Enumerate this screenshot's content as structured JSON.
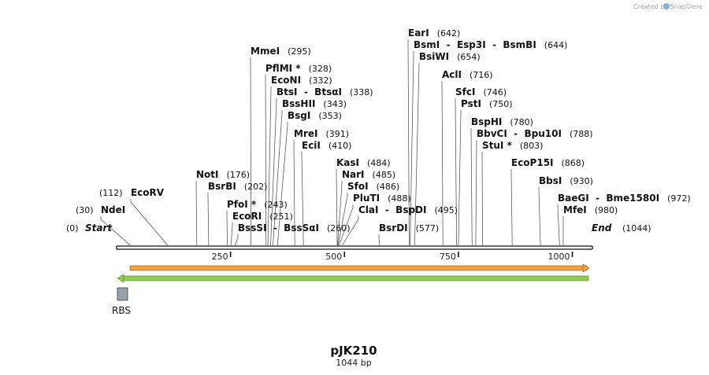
{
  "credit": "Created by SnapGene",
  "plasmid": {
    "name": "pJK210",
    "length_label": "1044 bp",
    "length": 1044
  },
  "ruler": {
    "ticks": [
      {
        "pos": 250,
        "label": "250"
      },
      {
        "pos": 500,
        "label": "500"
      },
      {
        "pos": 750,
        "label": "750"
      },
      {
        "pos": 1000,
        "label": "1000"
      }
    ]
  },
  "ends": {
    "start": {
      "label": "Start",
      "pos": 0,
      "pos_label": "(0)"
    },
    "end": {
      "label": "End",
      "pos": 1044,
      "pos_label": "(1044)"
    }
  },
  "features": [
    {
      "name": "RBS",
      "type": "rbs"
    },
    {
      "name": "",
      "type": "forward-arrow"
    },
    {
      "name": "",
      "type": "reverse-arrow"
    }
  ],
  "enzymes": [
    {
      "name": "NdeI",
      "pos": 30,
      "pos_label": "(30)"
    },
    {
      "name": "EcoRV",
      "pos": 112,
      "pos_label": "(112)"
    },
    {
      "name": "NotI",
      "pos": 176,
      "pos_label": "(176)"
    },
    {
      "name": "BsrBI",
      "pos": 202,
      "pos_label": "(202)"
    },
    {
      "name": "PfoI *",
      "pos": 243,
      "pos_label": "(243)"
    },
    {
      "name": "EcoRI",
      "pos": 251,
      "pos_label": "(251)"
    },
    {
      "name": "BssSI  -  BssSαI",
      "pos": 260,
      "pos_label": "(260)"
    },
    {
      "name": "MmeI",
      "pos": 295,
      "pos_label": "(295)"
    },
    {
      "name": "PflMI *",
      "pos": 328,
      "pos_label": "(328)"
    },
    {
      "name": "EcoNI",
      "pos": 332,
      "pos_label": "(332)"
    },
    {
      "name": "BtsI  -  BtsαI",
      "pos": 338,
      "pos_label": "(338)"
    },
    {
      "name": "BssHII",
      "pos": 343,
      "pos_label": "(343)"
    },
    {
      "name": "BsgI",
      "pos": 353,
      "pos_label": "(353)"
    },
    {
      "name": "MreI",
      "pos": 391,
      "pos_label": "(391)"
    },
    {
      "name": "EciI",
      "pos": 410,
      "pos_label": "(410)"
    },
    {
      "name": "KasI",
      "pos": 484,
      "pos_label": "(484)"
    },
    {
      "name": "NarI",
      "pos": 485,
      "pos_label": "(485)"
    },
    {
      "name": "SfoI",
      "pos": 486,
      "pos_label": "(486)"
    },
    {
      "name": "PluTI",
      "pos": 488,
      "pos_label": "(488)"
    },
    {
      "name": "ClaI  -  BspDI",
      "pos": 495,
      "pos_label": "(495)"
    },
    {
      "name": "BsrDI",
      "pos": 577,
      "pos_label": "(577)"
    },
    {
      "name": "EarI",
      "pos": 642,
      "pos_label": "(642)"
    },
    {
      "name": "BsmI  -  Esp3I  -  BsmBI",
      "pos": 644,
      "pos_label": "(644)"
    },
    {
      "name": "BsiWI",
      "pos": 654,
      "pos_label": "(654)"
    },
    {
      "name": "AclI",
      "pos": 716,
      "pos_label": "(716)"
    },
    {
      "name": "SfcI",
      "pos": 746,
      "pos_label": "(746)"
    },
    {
      "name": "PstI",
      "pos": 750,
      "pos_label": "(750)"
    },
    {
      "name": "BspHI",
      "pos": 780,
      "pos_label": "(780)"
    },
    {
      "name": "BbvCI  -  Bpu10I",
      "pos": 788,
      "pos_label": "(788)"
    },
    {
      "name": "StuI *",
      "pos": 803,
      "pos_label": "(803)"
    },
    {
      "name": "EcoP15I",
      "pos": 868,
      "pos_label": "(868)"
    },
    {
      "name": "BbsI",
      "pos": 930,
      "pos_label": "(930)"
    },
    {
      "name": "BaeGI  -  Bme1580I",
      "pos": 972,
      "pos_label": "(972)"
    },
    {
      "name": "MfeI",
      "pos": 980,
      "pos_label": "(980)"
    }
  ]
}
